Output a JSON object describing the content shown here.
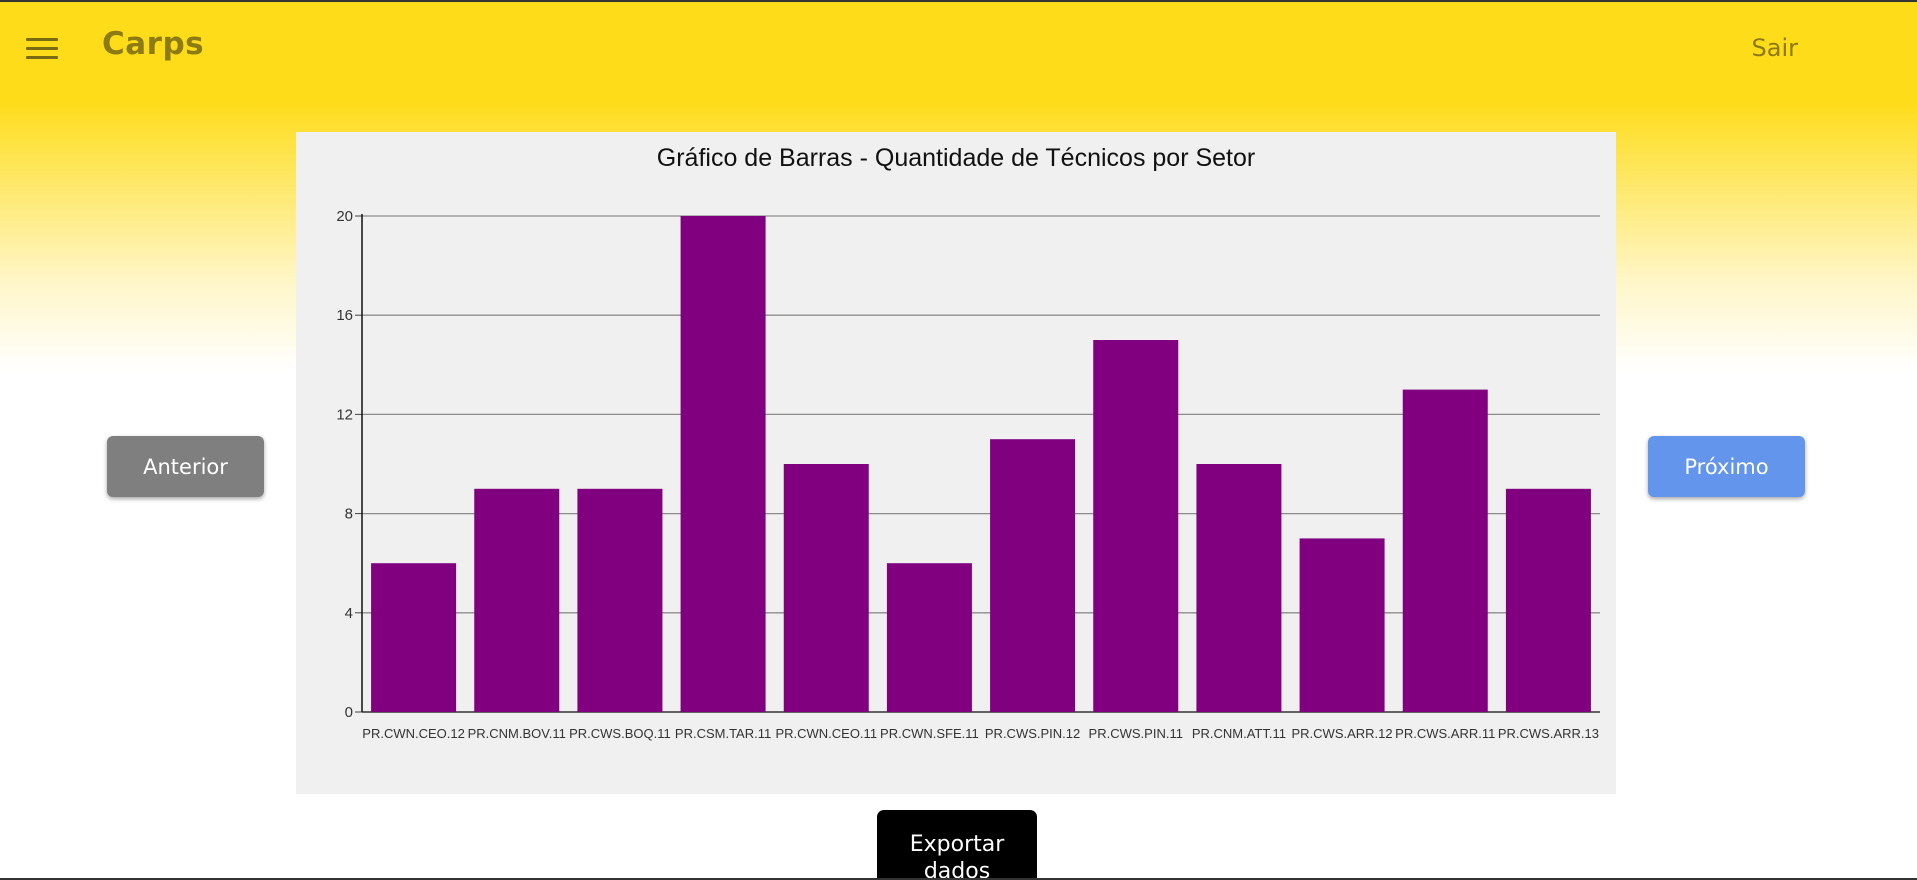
{
  "header": {
    "menu_icon": "hamburger-menu-icon",
    "app_title": "Carps",
    "logout_label": "Sair"
  },
  "navigation": {
    "previous_label": "Anterior",
    "next_label": "Próximo"
  },
  "export": {
    "label": "Exportar dados"
  },
  "colors": {
    "header_yellow": "#fedc1a",
    "bar_color": "#800080",
    "previous_button": "#7f7f7f",
    "next_button": "#6495ed",
    "export_button": "#000000",
    "chart_background": "#f0f0f0"
  },
  "chart_data": {
    "type": "bar",
    "title": "Gráfico de Barras - Quantidade de Técnicos por Setor",
    "xlabel": "",
    "ylabel": "",
    "categories": [
      "PR.CWN.CEO.12",
      "PR.CNM.BOV.11",
      "PR.CWS.BOQ.11",
      "PR.CSM.TAR.11",
      "PR.CWN.CEO.11",
      "PR.CWN.SFE.11",
      "PR.CWS.PIN.12",
      "PR.CWS.PIN.11",
      "PR.CNM.ATT.11",
      "PR.CWS.ARR.12",
      "PR.CWS.ARR.11",
      "PR.CWS.ARR.13"
    ],
    "values": [
      6,
      9,
      9,
      20,
      10,
      6,
      11,
      15,
      10,
      7,
      13,
      9
    ],
    "ylim": [
      0,
      20
    ],
    "yticks": [
      0,
      4,
      8,
      12,
      16,
      20
    ],
    "grid": true,
    "legend": "none",
    "bar_color": "#800080"
  }
}
